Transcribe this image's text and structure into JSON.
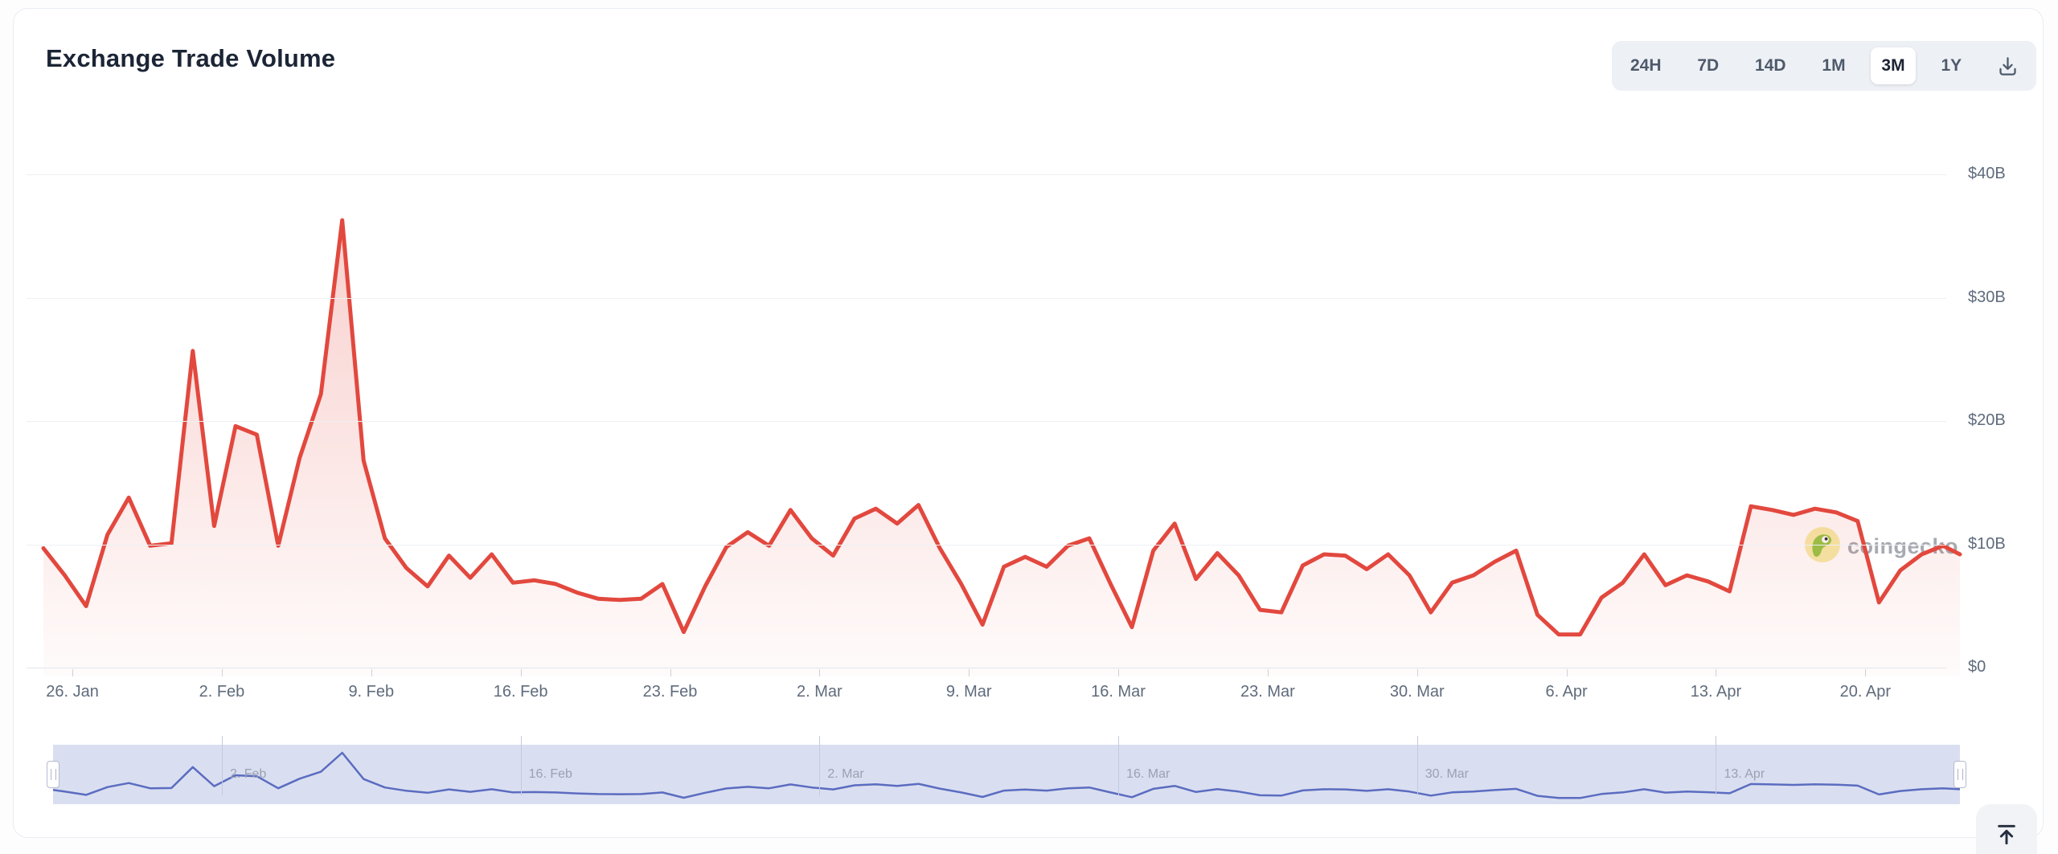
{
  "header": {
    "title": "Exchange Trade Volume"
  },
  "toolbar": {
    "ranges": [
      "24H",
      "7D",
      "14D",
      "1M",
      "3M",
      "1Y"
    ],
    "active_range": "3M",
    "download_icon": "download-icon"
  },
  "chart_data": {
    "type": "area",
    "title": "Exchange Trade Volume",
    "unit": "USD billions per day",
    "xlabel": "",
    "ylabel": "",
    "ylim": [
      0,
      42
    ],
    "grid": "horizontal",
    "legend": "none",
    "y_tick_labels": [
      "$0",
      "$10B",
      "$20B",
      "$30B",
      "$40B"
    ],
    "y_tick_values": [
      0,
      10,
      20,
      30,
      40
    ],
    "x_tick_labels": [
      "26. Jan",
      "2. Feb",
      "9. Feb",
      "16. Feb",
      "23. Feb",
      "2. Mar",
      "9. Mar",
      "16. Mar",
      "23. Mar",
      "30. Mar",
      "6. Apr",
      "13. Apr",
      "20. Apr"
    ],
    "series": [
      {
        "name": "Exchange Trade Volume ($B)",
        "dates": [
          "Jan 24",
          "Jan 25",
          "Jan 26",
          "Jan 27",
          "Jan 28",
          "Jan 29",
          "Jan 30",
          "Jan 31",
          "Feb 1",
          "Feb 2",
          "Feb 3",
          "Feb 4",
          "Feb 5",
          "Feb 6",
          "Feb 7",
          "Feb 8",
          "Feb 9",
          "Feb 10",
          "Feb 11",
          "Feb 12",
          "Feb 13",
          "Feb 14",
          "Feb 15",
          "Feb 16",
          "Feb 17",
          "Feb 18",
          "Feb 19",
          "Feb 20",
          "Feb 21",
          "Feb 22",
          "Feb 23",
          "Feb 24",
          "Feb 25",
          "Feb 26",
          "Feb 27",
          "Feb 28",
          "Mar 1",
          "Mar 2",
          "Mar 3",
          "Mar 4",
          "Mar 5",
          "Mar 6",
          "Mar 7",
          "Mar 8",
          "Mar 9",
          "Mar 10",
          "Mar 11",
          "Mar 12",
          "Mar 13",
          "Mar 14",
          "Mar 15",
          "Mar 16",
          "Mar 17",
          "Mar 18",
          "Mar 19",
          "Mar 20",
          "Mar 21",
          "Mar 22",
          "Mar 23",
          "Mar 24",
          "Mar 25",
          "Mar 26",
          "Mar 27",
          "Mar 28",
          "Mar 29",
          "Mar 30",
          "Mar 31",
          "Apr 1",
          "Apr 2",
          "Apr 3",
          "Apr 4",
          "Apr 5",
          "Apr 6",
          "Apr 7",
          "Apr 8",
          "Apr 9",
          "Apr 10",
          "Apr 11",
          "Apr 12",
          "Apr 13",
          "Apr 14",
          "Apr 15",
          "Apr 16",
          "Apr 17",
          "Apr 18",
          "Apr 19",
          "Apr 20",
          "Apr 21",
          "Apr 22",
          "Apr 23",
          "Apr 24"
        ],
        "values": [
          10.4,
          8.2,
          5.7,
          11.5,
          14.5,
          10.6,
          10.8,
          26.4,
          12.2,
          20.3,
          19.6,
          10.6,
          17.7,
          22.9,
          37.0,
          17.5,
          11.2,
          8.8,
          7.3,
          9.8,
          8.0,
          9.9,
          7.6,
          7.8,
          7.5,
          6.8,
          6.3,
          6.2,
          6.3,
          7.5,
          3.6,
          7.3,
          10.5,
          11.7,
          10.6,
          13.5,
          11.2,
          9.8,
          12.8,
          13.6,
          12.4,
          13.9,
          10.4,
          7.5,
          4.2,
          8.9,
          9.7,
          8.9,
          10.6,
          11.2,
          7.5,
          4.0,
          10.2,
          12.4,
          7.9,
          10.0,
          8.2,
          5.4,
          5.2,
          9.0,
          9.9,
          9.8,
          8.7,
          9.9,
          8.2,
          5.2,
          7.6,
          8.2,
          9.3,
          10.2,
          5.0,
          3.4,
          3.4,
          6.4,
          7.6,
          9.9,
          7.4,
          8.2,
          7.7,
          6.9,
          13.8,
          13.5,
          13.1,
          13.6,
          13.3,
          12.6,
          6.0,
          8.6,
          9.9,
          10.6,
          9.9
        ]
      }
    ]
  },
  "navigator": {
    "labels": [
      "2. Feb",
      "16. Feb",
      "2. Mar",
      "16. Mar",
      "30. Mar",
      "13. Apr"
    ]
  },
  "watermark": {
    "text": "coingecko",
    "icon": "coingecko-gecko-icon"
  },
  "scroll_top": {
    "icon": "scroll-to-top-icon"
  },
  "colors": {
    "line": "#e2483e",
    "fill_top": "rgba(227,69,59,0.26)",
    "fill_bottom": "rgba(227,69,59,0.02)",
    "navigator_line": "#5b6cc0",
    "navigator_bg": "#d9dff1",
    "active_range_text": "#1b2433",
    "axis_text": "#5f6b7c"
  }
}
